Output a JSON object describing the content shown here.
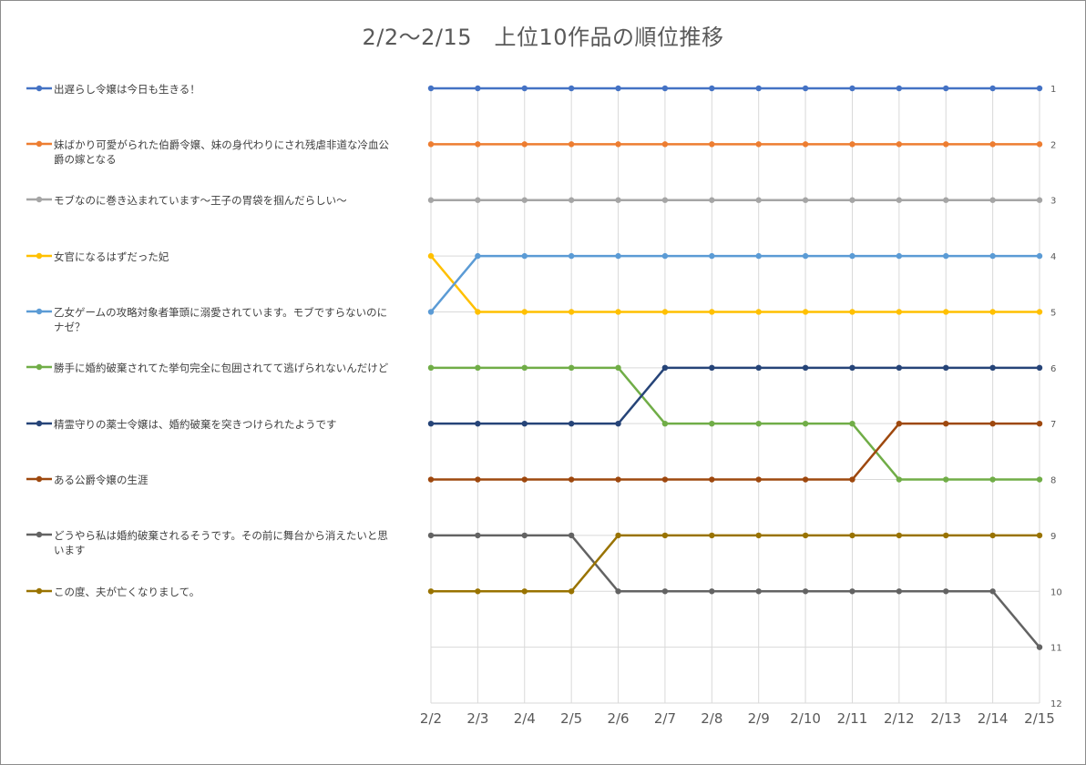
{
  "chart_data": {
    "type": "line",
    "title": "2/2～2/15　上位10作品の順位推移",
    "xlabel": "",
    "ylabel": "",
    "categories": [
      "2/2",
      "2/3",
      "2/4",
      "2/5",
      "2/6",
      "2/7",
      "2/8",
      "2/9",
      "2/10",
      "2/11",
      "2/12",
      "2/13",
      "2/14",
      "2/15"
    ],
    "y_axis": {
      "min": 1,
      "max": 12,
      "reversed": true,
      "position": "right",
      "ticks": [
        1,
        2,
        3,
        4,
        5,
        6,
        7,
        8,
        9,
        10,
        11,
        12
      ]
    },
    "grid": {
      "vertical": true,
      "horizontal": true
    },
    "legend_position": "left",
    "series": [
      {
        "name": "出遅らし令嬢は今日も生きる！",
        "color": "#4472c4",
        "values": [
          1,
          1,
          1,
          1,
          1,
          1,
          1,
          1,
          1,
          1,
          1,
          1,
          1,
          1
        ]
      },
      {
        "name": "妹ばかり可愛がられた伯爵令嬢、妹の身代わりにされ残虐非道な冷血公爵の嫁となる",
        "color": "#ed7d31",
        "values": [
          2,
          2,
          2,
          2,
          2,
          2,
          2,
          2,
          2,
          2,
          2,
          2,
          2,
          2
        ]
      },
      {
        "name": "モブなのに巻き込まれています～王子の胃袋を掴んだらしい～",
        "color": "#a5a5a5",
        "values": [
          3,
          3,
          3,
          3,
          3,
          3,
          3,
          3,
          3,
          3,
          3,
          3,
          3,
          3
        ]
      },
      {
        "name": "女官になるはずだった妃",
        "color": "#ffc000",
        "values": [
          4,
          5,
          5,
          5,
          5,
          5,
          5,
          5,
          5,
          5,
          5,
          5,
          5,
          5
        ]
      },
      {
        "name": "乙女ゲームの攻略対象者筆頭に溺愛されています。モブですらないのにナゼ？",
        "color": "#5b9bd5",
        "values": [
          5,
          4,
          4,
          4,
          4,
          4,
          4,
          4,
          4,
          4,
          4,
          4,
          4,
          4
        ]
      },
      {
        "name": "勝手に婚約破棄されてた挙句完全に包囲されてて逃げられないんだけど",
        "color": "#70ad47",
        "values": [
          6,
          6,
          6,
          6,
          6,
          7,
          7,
          7,
          7,
          7,
          8,
          8,
          8,
          8
        ]
      },
      {
        "name": "精霊守りの薬士令嬢は、婚約破棄を突きつけられたようです",
        "color": "#264478",
        "values": [
          7,
          7,
          7,
          7,
          7,
          6,
          6,
          6,
          6,
          6,
          6,
          6,
          6,
          6
        ]
      },
      {
        "name": "ある公爵令嬢の生涯",
        "color": "#9e480e",
        "values": [
          8,
          8,
          8,
          8,
          8,
          8,
          8,
          8,
          8,
          8,
          7,
          7,
          7,
          7
        ]
      },
      {
        "name": "どうやら私は婚約破棄されるそうです。その前に舞台から消えたいと思います",
        "color": "#636363",
        "values": [
          9,
          9,
          9,
          9,
          10,
          10,
          10,
          10,
          10,
          10,
          10,
          10,
          10,
          11
        ]
      },
      {
        "name": "この度、夫が亡くなりまして。",
        "color": "#997300",
        "values": [
          10,
          10,
          10,
          10,
          9,
          9,
          9,
          9,
          9,
          9,
          9,
          9,
          9,
          9
        ]
      }
    ]
  }
}
